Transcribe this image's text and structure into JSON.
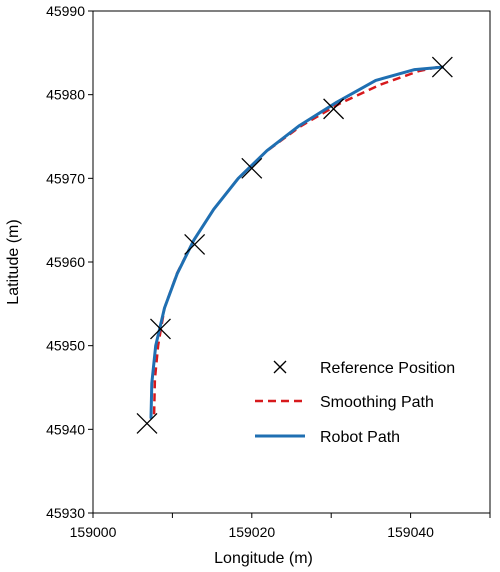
{
  "chart_data": {
    "type": "line",
    "xlabel": "Longitude (m)",
    "ylabel": "Latitude (m)",
    "xlim": [
      159000,
      159050
    ],
    "ylim": [
      45930,
      45990
    ],
    "x_ticks": [
      159000,
      159020,
      159040
    ],
    "y_ticks": [
      45930,
      45940,
      45950,
      45960,
      45970,
      45980,
      45990
    ],
    "grid": false,
    "legend_position": "center-right",
    "series": [
      {
        "name": "Reference Position",
        "style": "markers-x",
        "color": "#000000",
        "points": [
          [
            159006.8,
            45940.7
          ],
          [
            159008.5,
            45952.0
          ],
          [
            159012.8,
            45962.1
          ],
          [
            159020.0,
            45971.2
          ],
          [
            159030.3,
            45978.3
          ],
          [
            159044.0,
            45983.3
          ]
        ]
      },
      {
        "name": "Smoothing Path",
        "style": "dashed",
        "color": "#d7191c",
        "points": [
          [
            159007.7,
            45941.8
          ],
          [
            159007.8,
            45946.0
          ],
          [
            159008.2,
            45950.0
          ],
          [
            159009.0,
            45954.5
          ],
          [
            159010.6,
            45958.7
          ],
          [
            159012.7,
            45962.6
          ],
          [
            159015.2,
            45966.3
          ],
          [
            159018.2,
            45969.9
          ],
          [
            159021.8,
            45973.2
          ],
          [
            159026.1,
            45976.2
          ],
          [
            159031.0,
            45978.9
          ],
          [
            159036.2,
            45981.2
          ],
          [
            159041.0,
            45982.8
          ],
          [
            159044.0,
            45983.4
          ]
        ]
      },
      {
        "name": "Robot Path",
        "style": "solid",
        "color": "#1f6fb2",
        "points": [
          [
            159007.3,
            45941.4
          ],
          [
            159007.4,
            45945.5
          ],
          [
            159007.9,
            45950.0
          ],
          [
            159009.0,
            45954.5
          ],
          [
            159010.6,
            45958.6
          ],
          [
            159012.7,
            45962.6
          ],
          [
            159015.2,
            45966.3
          ],
          [
            159018.3,
            45970.0
          ],
          [
            159021.9,
            45973.3
          ],
          [
            159026.0,
            45976.3
          ],
          [
            159030.7,
            45979.1
          ],
          [
            159035.6,
            45981.7
          ],
          [
            159040.5,
            45983.0
          ],
          [
            159044.0,
            45983.3
          ]
        ]
      }
    ]
  }
}
